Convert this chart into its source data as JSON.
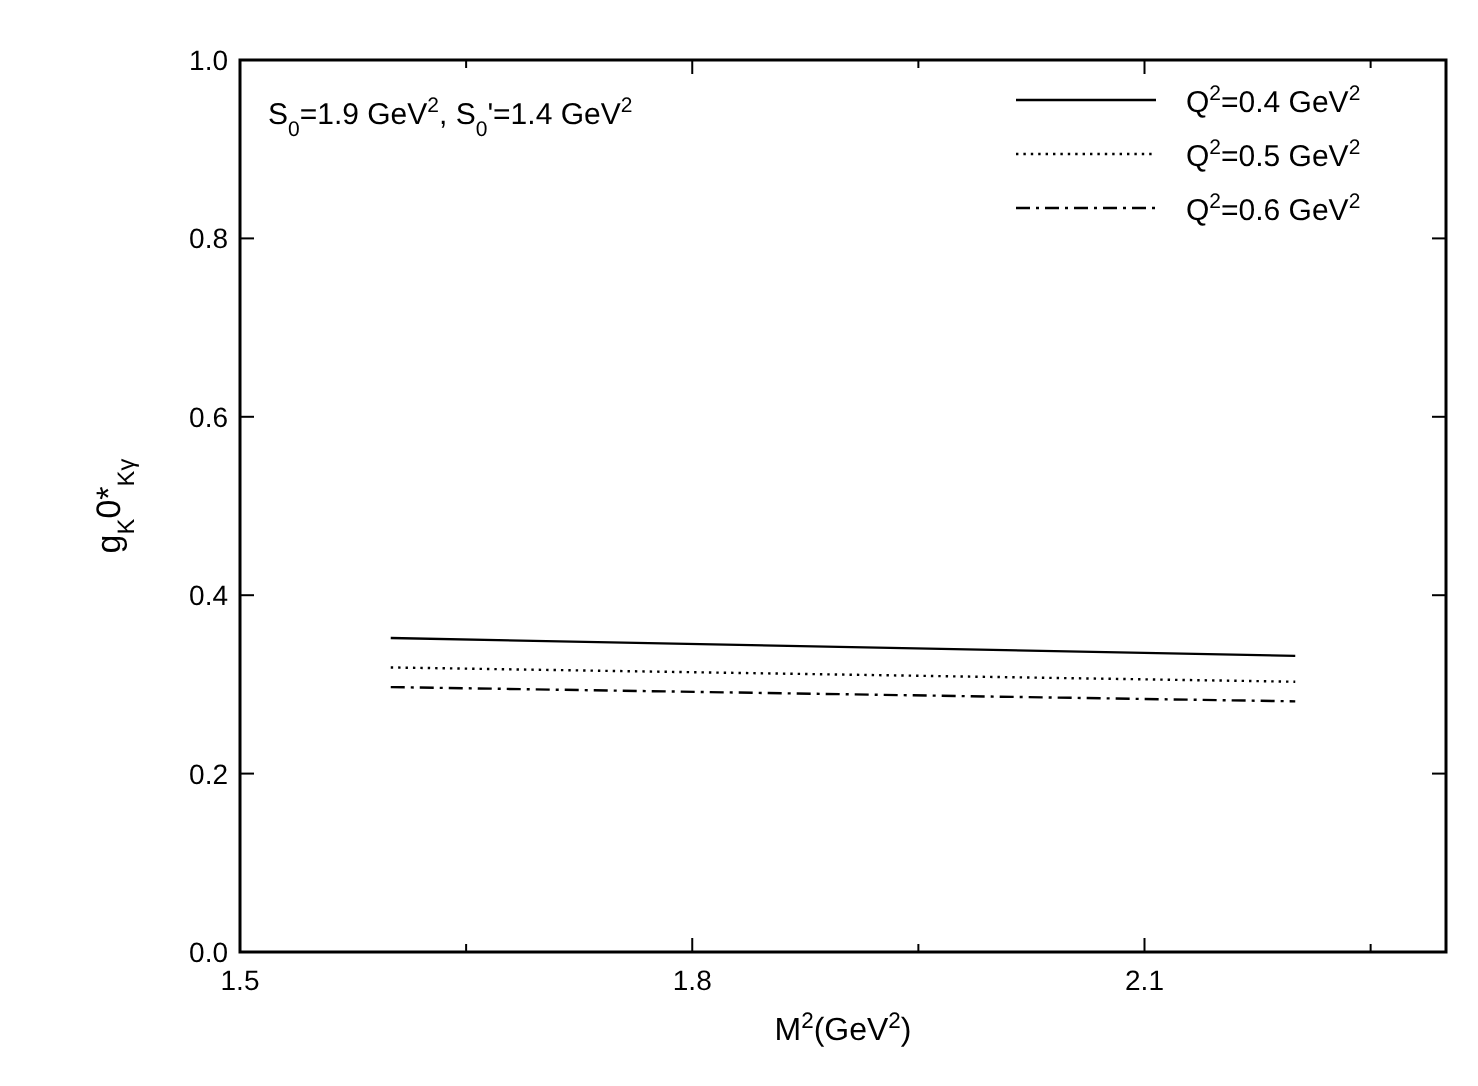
{
  "chart_data": {
    "type": "line",
    "xlabel": "M$^{2}$(GeV$^{2}$)",
    "ylabel": "g$_{K}$0*$_{Kγ}$",
    "annotations": [
      "S$_{0}$=1.9 GeV$^{2}$, S$_{0}$'=1.4 GeV$^{2}$"
    ],
    "xlim": [
      1.5,
      2.3
    ],
    "xticks": [
      1.5,
      {
        "value": 1.65,
        "label": null
      },
      1.8,
      {
        "value": 1.95,
        "label": null
      },
      2.1,
      {
        "value": 2.25,
        "label": null
      }
    ],
    "ylim": [
      0,
      1
    ],
    "yticks": [
      {
        "value": 0,
        "label": "0.0"
      },
      {
        "value": 0.2,
        "label": "0.2"
      },
      {
        "value": 0.4,
        "label": "0.4"
      },
      {
        "value": 0.6,
        "label": "0.6"
      },
      {
        "value": 0.8,
        "label": "0.8"
      },
      {
        "value": 1,
        "label": "1.0"
      }
    ],
    "legend": "top right",
    "grid": false,
    "x": [
      1.6,
      2.2
    ],
    "series": [
      {
        "name": "Q$^{2}$=0.4 GeV$^{2}$",
        "color": "#000000",
        "line_style": "solid",
        "values": [
          0.352,
          0.332
        ]
      },
      {
        "name": "Q$^{2}$=0.5 GeV$^{2}$",
        "color": "#000000",
        "line_style": "dotted",
        "values": [
          0.319,
          0.303
        ]
      },
      {
        "name": "Q$^{2}$=0.6 GeV$^{2}$",
        "color": "#000000",
        "line_style": "dashdot",
        "values": [
          0.297,
          0.281
        ]
      }
    ]
  }
}
